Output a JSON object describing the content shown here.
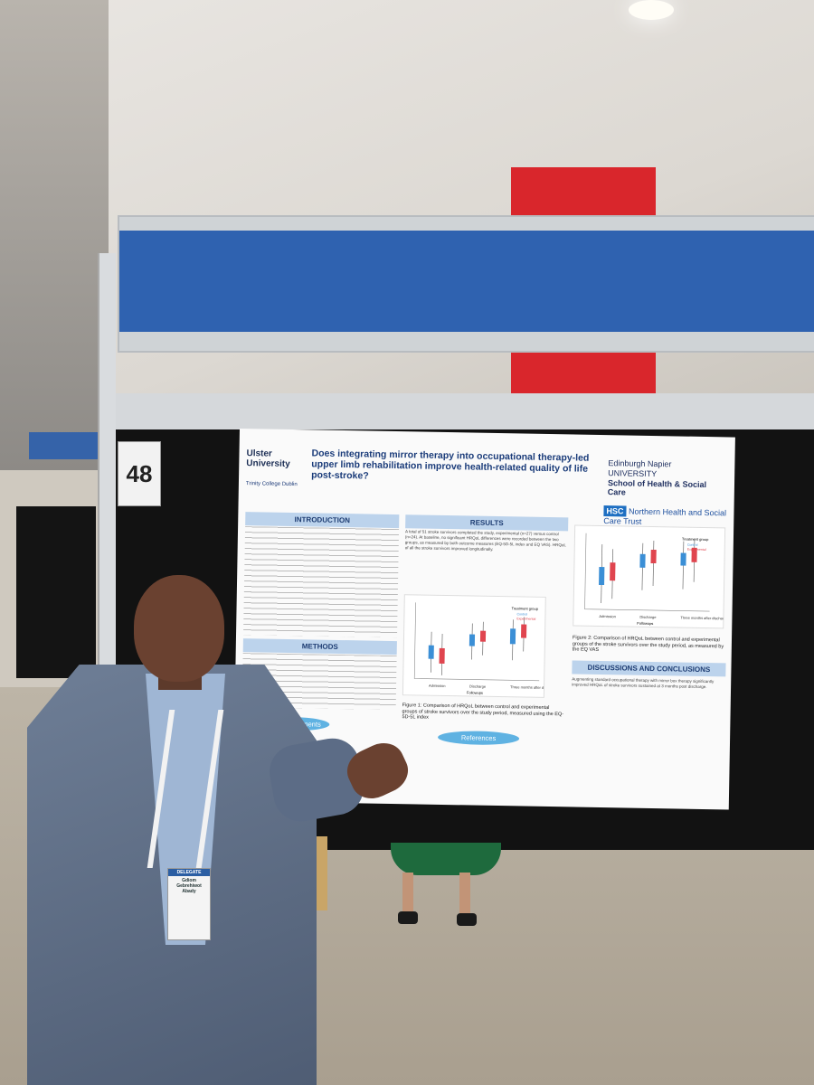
{
  "booth": {
    "number": "48"
  },
  "poster": {
    "title": "Does integrating mirror therapy into occupational therapy-led upper limb rehabilitation improve health-related quality of life post-stroke?",
    "logos": {
      "ulster": "Ulster University",
      "trinity": "Trinity College Dublin",
      "napier_line1": "Edinburgh Napier",
      "napier_line2": "UNIVERSITY",
      "school": "School of Health & Social Care",
      "hsc_box": "HSC",
      "hsc_name": "Northern Health and Social Care Trust"
    },
    "sections": {
      "introduction": "INTRODUCTION",
      "methods": "METHODS",
      "acknowledgments": "Acknowledgments",
      "results": "RESULTS",
      "discussion": "DISCUSSIONS AND CONCLUSIONS",
      "references": "References"
    },
    "results_text": "A total of 51 stroke survivors completed the study, experimental (n=27) versus control (n=24). At baseline, no significant HRQoL differences were recorded between the two groups, as measured by both outcome measures (EQ-5D-5L index and EQ VAS). HRQoL of all the stroke survivors improved longitudinally.",
    "figure1_caption": "Figure 1: Comparison of HRQoL between control and experimental groups of stroke survivors over the study period, measured using the EQ-5D-5L index",
    "figure2_caption": "Figure 2: Comparison of HRQoL between control and experimental groups of the stroke survivors over the study period, as measured by the EQ VAS",
    "discussion_text": "Augmenting standard occupational therapy with mirror box therapy significantly improved HRQoL of stroke survivors sustained at 3 months post discharge.",
    "chart_axis": {
      "x_ticks": [
        "Admission",
        "Discharge",
        "Three months after discharge"
      ],
      "xlabel": "Followups",
      "legend_title": "Treatment group",
      "legend_items": [
        "Control",
        "Experimental"
      ]
    }
  },
  "badge": {
    "header": "DELEGATE",
    "name": "Gdiom Gebrehiwot Abady"
  },
  "colors": {
    "blue_band": "#2f62b0",
    "control": "#3b8fd6",
    "experimental": "#e0454f"
  }
}
